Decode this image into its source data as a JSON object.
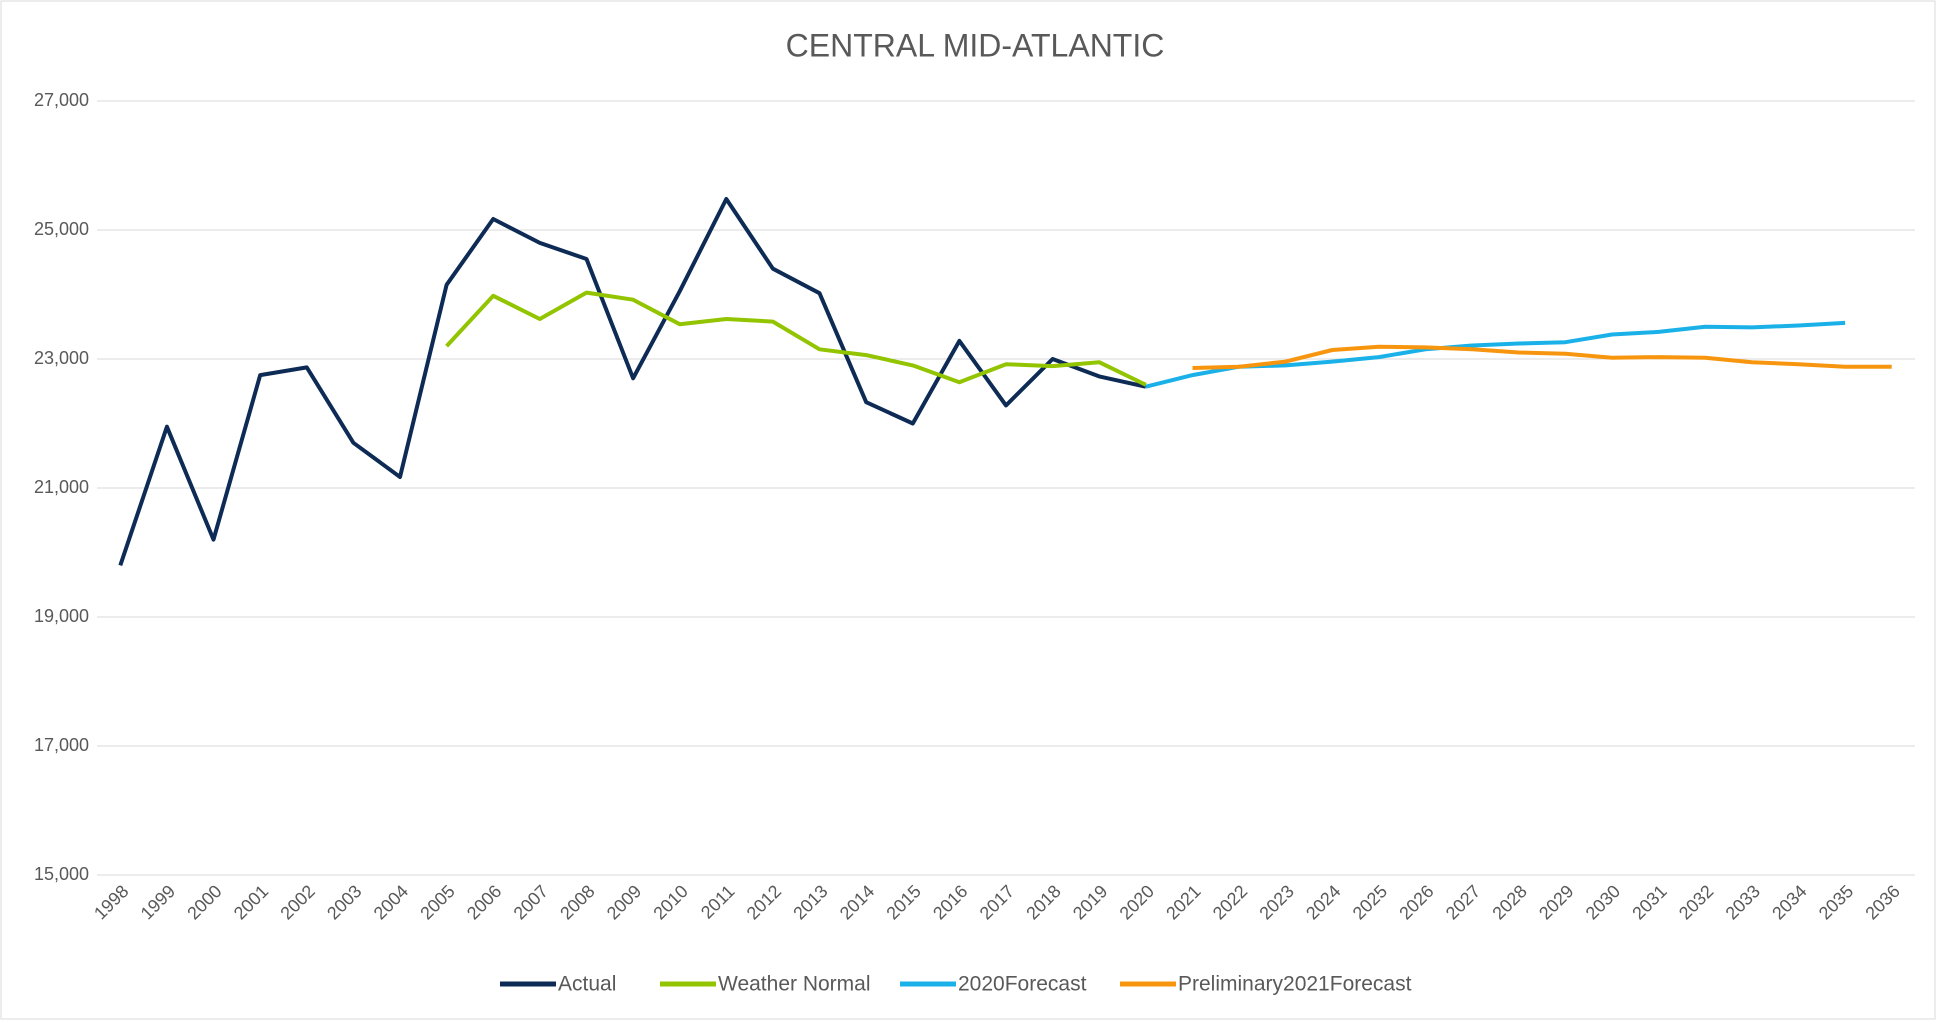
{
  "chart_data": {
    "type": "line",
    "title": "CENTRAL MID-ATLANTIC",
    "categories": [
      "1998",
      "1999",
      "2000",
      "2001",
      "2002",
      "2003",
      "2004",
      "2005",
      "2006",
      "2007",
      "2008",
      "2009",
      "2010",
      "2011",
      "2012",
      "2013",
      "2014",
      "2015",
      "2016",
      "2017",
      "2018",
      "2019",
      "2020",
      "2021",
      "2022",
      "2023",
      "2024",
      "2025",
      "2026",
      "2027",
      "2028",
      "2029",
      "2030",
      "2031",
      "2032",
      "2033",
      "2034",
      "2035",
      "2036"
    ],
    "series": [
      {
        "name": "Actual",
        "color": "#0d2b55",
        "values": [
          19800,
          21950,
          20200,
          22750,
          22870,
          21700,
          21170,
          24150,
          25170,
          24800,
          24550,
          22700,
          24050,
          25480,
          24400,
          24020,
          22330,
          22000,
          23280,
          22280,
          23000,
          22730,
          22570,
          null,
          null,
          null,
          null,
          null,
          null,
          null,
          null,
          null,
          null,
          null,
          null,
          null,
          null,
          null,
          null
        ]
      },
      {
        "name": "Weather Normal",
        "color": "#92c400",
        "values": [
          null,
          null,
          null,
          null,
          null,
          null,
          null,
          23200,
          23980,
          23620,
          24030,
          23920,
          23540,
          23620,
          23580,
          23150,
          23060,
          22900,
          22640,
          22920,
          22890,
          22950,
          22600,
          null,
          null,
          null,
          null,
          null,
          null,
          null,
          null,
          null,
          null,
          null,
          null,
          null,
          null,
          null,
          null
        ]
      },
      {
        "name": "2020Forecast",
        "color": "#1ab0e8",
        "values": [
          null,
          null,
          null,
          null,
          null,
          null,
          null,
          null,
          null,
          null,
          null,
          null,
          null,
          null,
          null,
          null,
          null,
          null,
          null,
          null,
          null,
          null,
          22570,
          22750,
          22880,
          22900,
          22960,
          23030,
          23150,
          23210,
          23240,
          23260,
          23380,
          23420,
          23500,
          23490,
          23520,
          23560,
          null
        ]
      },
      {
        "name": "Preliminary2021Forecast",
        "color": "#f7960e",
        "values": [
          null,
          null,
          null,
          null,
          null,
          null,
          null,
          null,
          null,
          null,
          null,
          null,
          null,
          null,
          null,
          null,
          null,
          null,
          null,
          null,
          null,
          null,
          null,
          22860,
          22880,
          22960,
          23140,
          23190,
          23180,
          23150,
          23100,
          23080,
          23020,
          23030,
          23020,
          22950,
          22920,
          22880,
          22880
        ]
      }
    ],
    "ylim": [
      15000,
      27000
    ],
    "yticks": [
      {
        "value": 15000,
        "label": "15,000"
      },
      {
        "value": 17000,
        "label": "17,000"
      },
      {
        "value": 19000,
        "label": "19,000"
      },
      {
        "value": 21000,
        "label": "21,000"
      },
      {
        "value": 23000,
        "label": "23,000"
      },
      {
        "value": 25000,
        "label": "25,000"
      },
      {
        "value": 27000,
        "label": "27,000"
      }
    ],
    "grid": true,
    "legend": "bottom"
  }
}
